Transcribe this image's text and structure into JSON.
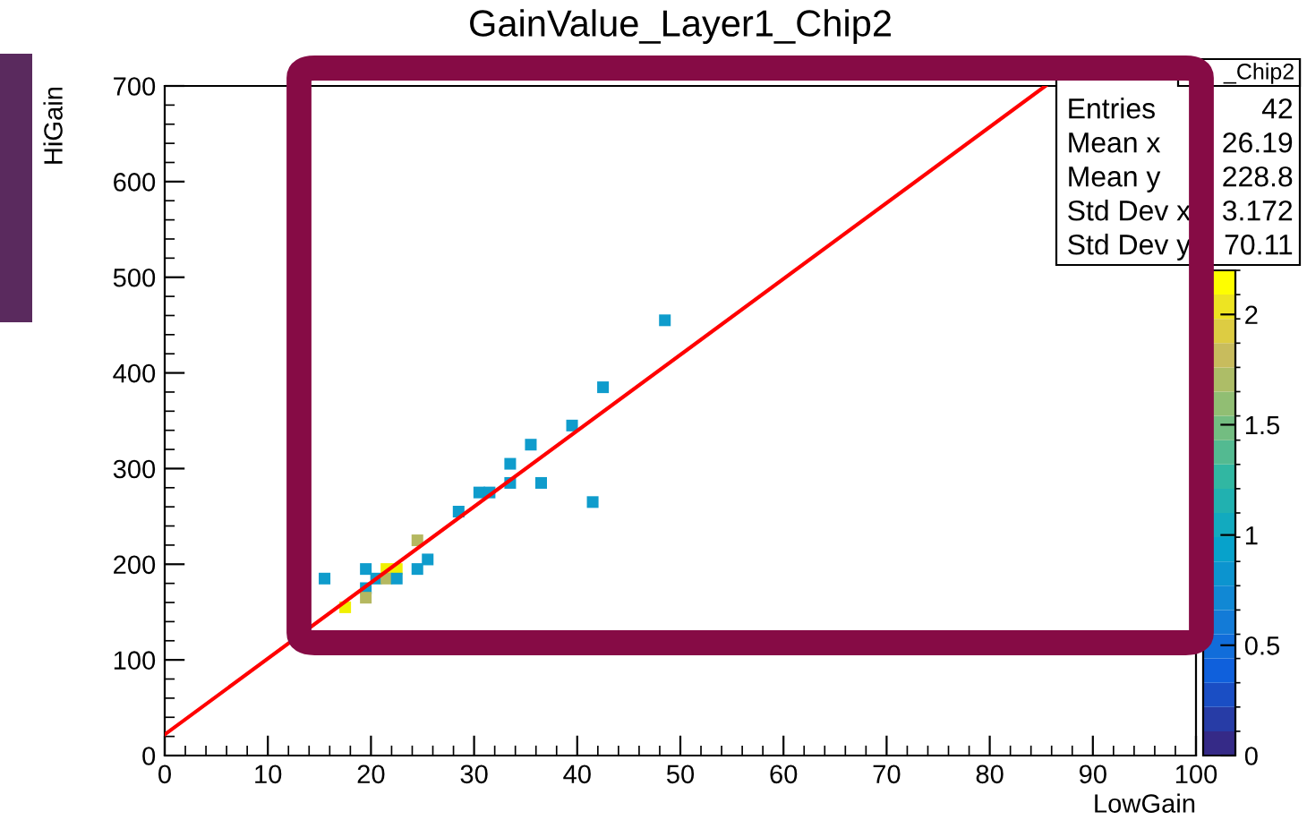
{
  "chart_data": {
    "type": "scatter",
    "title": "GainValue_Layer1_Chip2",
    "xlabel": "LowGain",
    "ylabel": "HiGain",
    "xlim": [
      0,
      100
    ],
    "xticks": [
      0,
      10,
      20,
      30,
      40,
      50,
      60,
      70,
      80,
      90,
      100
    ],
    "ylim": [
      0,
      700
    ],
    "yticks": [
      0,
      100,
      200,
      300,
      400,
      500,
      600,
      700
    ],
    "clim": [
      0,
      2.2
    ],
    "cticks": [
      0,
      0.5,
      1,
      1.5,
      2
    ],
    "grid": false,
    "legend": false,
    "series": [
      {
        "marker": "square",
        "x": [
          15.5,
          17.5,
          19.5,
          19.5,
          19.5,
          20.5,
          21.5,
          22.5,
          21.5,
          22.5,
          24.5,
          24.5,
          25.5,
          28.5,
          30.5,
          31.5,
          33.5,
          33.5,
          35.5,
          36.5,
          39.5,
          41.5,
          42.5,
          48.5
        ],
        "values": [
          185,
          155,
          195,
          175,
          165,
          185,
          195,
          195,
          185,
          185,
          225,
          195,
          205,
          255,
          275,
          275,
          285,
          305,
          325,
          285,
          345,
          265,
          385,
          455
        ],
        "colors": [
          "#0f9ccc",
          "#f0f000",
          "#0f9ccc",
          "#0f9ccc",
          "#b5b860",
          "#0f9ccc",
          "#f0f000",
          "#f0f000",
          "#b5b860",
          "#0f9ccc",
          "#b5b860",
          "#0f9ccc",
          "#0f9ccc",
          "#0f9ccc",
          "#0f9ccc",
          "#0f9ccc",
          "#0f9ccc",
          "#0f9ccc",
          "#0f9ccc",
          "#0f9ccc",
          "#0f9ccc",
          "#0f9ccc",
          "#0f9ccc",
          "#0f9ccc"
        ]
      },
      {
        "type": "line",
        "color": "#ff0000",
        "x": [
          0,
          85.4
        ],
        "values": [
          22,
          700
        ]
      }
    ],
    "annotations": [
      "_Chip2",
      "Entries",
      "42",
      "Mean x",
      "26.19",
      "Mean y",
      "228.8",
      "Std Dev x",
      "3.172",
      "Std Dev y",
      "70.11"
    ]
  }
}
